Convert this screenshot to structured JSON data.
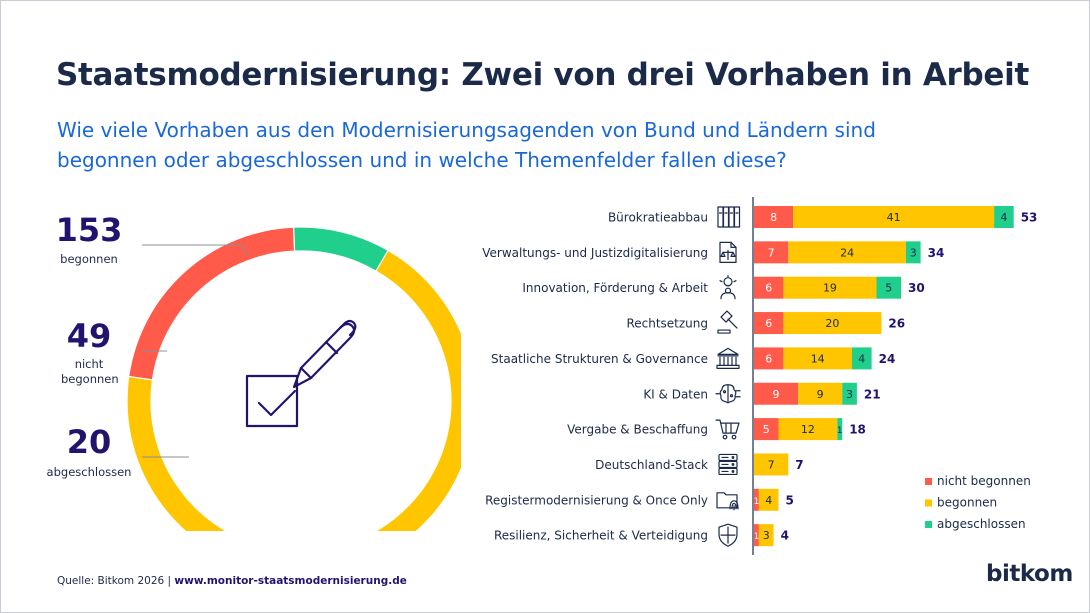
{
  "title": "Staatsmodernisierung: Zwei von drei Vorhaben in Arbeit",
  "subtitle": "Wie viele Vorhaben aus den Modernisierungsagenden von Bund und Ländern sind begonnen oder abgeschlossen und in welche Themenfelder fallen diese?",
  "source": {
    "prefix": "Quelle: Bitkom 2026 | ",
    "link": "www.monitor-staatsmodernisierung.de"
  },
  "brand": "bitkom",
  "colors": {
    "nicht_begonnen": "#ff5a4a",
    "begonnen": "#ffc600",
    "abgeschlossen": "#21cf8c",
    "total_text": "#22146e"
  },
  "chart_data": [
    {
      "type": "pie",
      "variant": "donut",
      "segments": [
        {
          "name": "begonnen",
          "value": 153,
          "label": "begonnen"
        },
        {
          "name": "nicht begonnen",
          "value": 49,
          "label": "nicht begonnen"
        },
        {
          "name": "abgeschlossen",
          "value": 20,
          "label": "abgeschlossen"
        }
      ]
    },
    {
      "type": "bar",
      "orientation": "horizontal",
      "stacked": true,
      "categories": [
        "Bürokratieabbau",
        "Verwaltungs- und Justizdigitalisierung",
        "Innovation, Förderung & Arbeit",
        "Rechtsetzung",
        "Staatliche Strukturen & Governance",
        "KI & Daten",
        "Vergabe & Beschaffung",
        "Deutschland-Stack",
        "Registermodernisierung & Once Only",
        "Resilienz, Sicherheit & Verteidigung"
      ],
      "icons": [
        "binders-icon",
        "document-scales-icon",
        "person-idea-icon",
        "gavel-icon",
        "government-building-icon",
        "ai-brain-icon",
        "shopping-cart-icon",
        "server-stack-icon",
        "folder-fingerprint-icon",
        "shield-icon"
      ],
      "series": [
        {
          "name": "nicht begonnen",
          "values": [
            8,
            7,
            6,
            6,
            6,
            9,
            5,
            0,
            1,
            1
          ]
        },
        {
          "name": "begonnen",
          "values": [
            41,
            24,
            19,
            20,
            14,
            9,
            12,
            7,
            4,
            3
          ]
        },
        {
          "name": "abgeschlossen",
          "values": [
            4,
            3,
            5,
            0,
            4,
            3,
            1,
            0,
            0,
            0
          ]
        }
      ],
      "totals": [
        53,
        34,
        30,
        26,
        24,
        21,
        18,
        7,
        5,
        4
      ],
      "legend": {
        "position": "bottom-right",
        "entries": [
          "nicht begonnen",
          "begonnen",
          "abgeschlossen"
        ]
      }
    }
  ]
}
